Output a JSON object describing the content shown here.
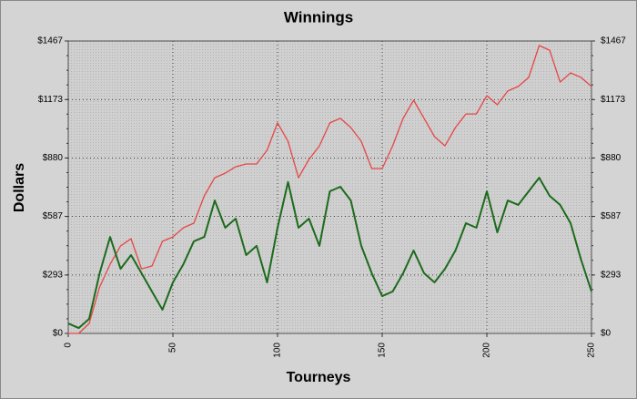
{
  "chart_data": {
    "type": "line",
    "title": "Winnings",
    "x_label": "Tourneys",
    "y_label": "Dollars",
    "x": [
      0,
      5,
      10,
      15,
      20,
      25,
      30,
      35,
      40,
      45,
      50,
      55,
      60,
      65,
      70,
      75,
      80,
      85,
      90,
      95,
      100,
      105,
      110,
      115,
      120,
      125,
      130,
      135,
      140,
      145,
      150,
      155,
      160,
      165,
      170,
      175,
      180,
      185,
      190,
      195,
      200,
      205,
      210,
      215,
      220,
      225,
      230,
      235,
      240,
      245,
      250
    ],
    "series": [
      {
        "color": "#e84646",
        "values": [
          0,
          0,
          50,
          233,
          347,
          439,
          475,
          324,
          338,
          462,
          484,
          530,
          553,
          690,
          781,
          804,
          836,
          850,
          850,
          919,
          1056,
          964,
          781,
          873,
          941,
          1056,
          1079,
          1033,
          964,
          827,
          827,
          941,
          1079,
          1170,
          1079,
          987,
          941,
          1033,
          1101,
          1101,
          1193,
          1147,
          1216,
          1239,
          1284,
          1444,
          1421,
          1261,
          1307,
          1284,
          1239
        ]
      },
      {
        "color": "#1c6b1c",
        "values": [
          50,
          27,
          73,
          302,
          484,
          324,
          393,
          302,
          210,
          119,
          256,
          347,
          462,
          484,
          667,
          530,
          576,
          393,
          439,
          256,
          530,
          759,
          530,
          576,
          439,
          713,
          736,
          667,
          439,
          302,
          187,
          210,
          302,
          416,
          302,
          256,
          324,
          416,
          553,
          530,
          713,
          507,
          667,
          645,
          713,
          781,
          690,
          645,
          553,
          370,
          210
        ]
      }
    ],
    "xlim": [
      0,
      250
    ],
    "xticks": [
      0,
      50,
      100,
      150,
      200,
      250
    ],
    "ylim": [
      0,
      1467
    ],
    "yticks": [
      {
        "value": 0,
        "label": "$0"
      },
      {
        "value": 293,
        "label": "$293"
      },
      {
        "value": 587,
        "label": "$587"
      },
      {
        "value": 880,
        "label": "$880"
      },
      {
        "value": 1173,
        "label": "$1173"
      },
      {
        "value": 1467,
        "label": "$1467"
      }
    ],
    "y2lim": [
      0,
      1467
    ],
    "y2ticks": [
      {
        "value": 0,
        "label": "$0"
      },
      {
        "value": 293,
        "label": "$293"
      },
      {
        "value": 587,
        "label": "$587"
      },
      {
        "value": 880,
        "label": "$880"
      },
      {
        "value": 1173,
        "label": "$1173"
      },
      {
        "value": 1467,
        "label": "$1467"
      }
    ],
    "grid": true
  }
}
